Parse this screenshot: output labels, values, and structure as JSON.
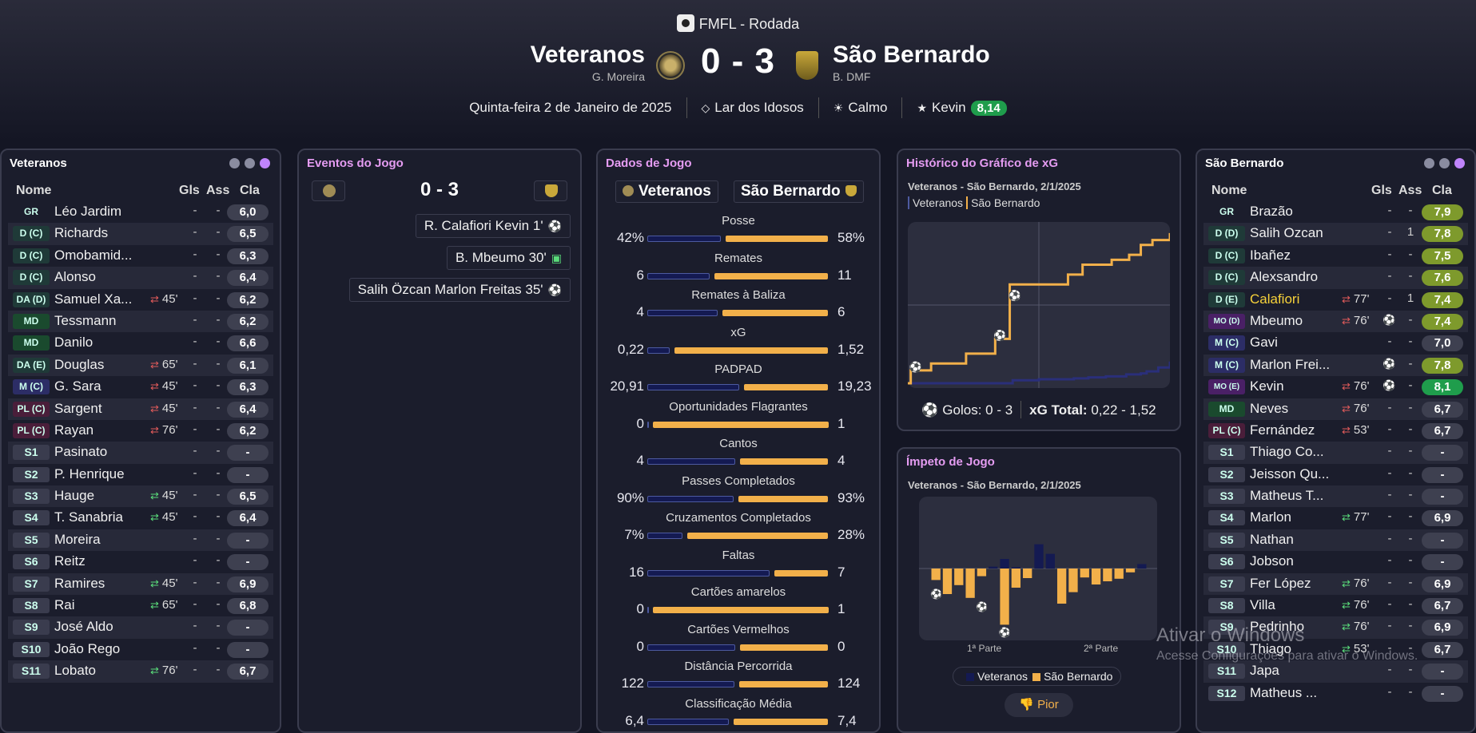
{
  "header": {
    "competition": "FMFL - Rodada",
    "home_team": "Veteranos",
    "home_coach": "G. Moreira",
    "away_team": "São Bernardo",
    "away_coach": "B. DMF",
    "score": "0 - 3",
    "date": "Quinta-feira 2 de Janeiro de 2025",
    "stadium": "Lar dos Idosos",
    "weather": "Calmo",
    "player_of_match": "Kevin",
    "player_of_match_rating": "8,14"
  },
  "home_panel": {
    "title": "Veteranos",
    "col_name": "Nome",
    "col_gls": "Gls",
    "col_ass": "Ass",
    "col_cla": "Cla",
    "players": [
      {
        "pos": "GR",
        "name": "Léo Jardim",
        "sub": "",
        "gls": "-",
        "ass": "-",
        "cla": "6,0"
      },
      {
        "pos": "D (C)",
        "name": "Richards",
        "sub": "",
        "gls": "-",
        "ass": "-",
        "cla": "6,5"
      },
      {
        "pos": "D (C)",
        "name": "Omobamid...",
        "sub": "",
        "gls": "-",
        "ass": "-",
        "cla": "6,3"
      },
      {
        "pos": "D (C)",
        "name": "Alonso",
        "sub": "",
        "gls": "-",
        "ass": "-",
        "cla": "6,4"
      },
      {
        "pos": "DA (D)",
        "name": "Samuel Xa...",
        "sub": "45'",
        "gls": "-",
        "ass": "-",
        "cla": "6,2"
      },
      {
        "pos": "MD",
        "name": "Tessmann",
        "sub": "",
        "gls": "-",
        "ass": "-",
        "cla": "6,2"
      },
      {
        "pos": "MD",
        "name": "Danilo",
        "sub": "",
        "gls": "-",
        "ass": "-",
        "cla": "6,6"
      },
      {
        "pos": "DA (E)",
        "name": "Douglas",
        "sub": "65'",
        "gls": "-",
        "ass": "-",
        "cla": "6,1"
      },
      {
        "pos": "M (C)",
        "name": "G. Sara",
        "sub": "45'",
        "gls": "-",
        "ass": "-",
        "cla": "6,3"
      },
      {
        "pos": "PL (C)",
        "name": "Sargent",
        "sub": "45'",
        "gls": "-",
        "ass": "-",
        "cla": "6,4"
      },
      {
        "pos": "PL (C)",
        "name": "Rayan",
        "sub": "76'",
        "gls": "-",
        "ass": "-",
        "cla": "6,2"
      },
      {
        "pos": "S1",
        "name": "Pasinato",
        "sub": "",
        "gls": "-",
        "ass": "-",
        "cla": "-"
      },
      {
        "pos": "S2",
        "name": "P. Henrique",
        "sub": "",
        "gls": "-",
        "ass": "-",
        "cla": "-"
      },
      {
        "pos": "S3",
        "name": "Hauge",
        "sub": "45'",
        "gls": "-",
        "ass": "-",
        "cla": "6,5"
      },
      {
        "pos": "S4",
        "name": "T. Sanabria",
        "sub": "45'",
        "gls": "-",
        "ass": "-",
        "cla": "6,4"
      },
      {
        "pos": "S5",
        "name": "Moreira",
        "sub": "",
        "gls": "-",
        "ass": "-",
        "cla": "-"
      },
      {
        "pos": "S6",
        "name": "Reitz",
        "sub": "",
        "gls": "-",
        "ass": "-",
        "cla": "-"
      },
      {
        "pos": "S7",
        "name": "Ramires",
        "sub": "45'",
        "gls": "-",
        "ass": "-",
        "cla": "6,9"
      },
      {
        "pos": "S8",
        "name": "Rai",
        "sub": "65'",
        "gls": "-",
        "ass": "-",
        "cla": "6,8"
      },
      {
        "pos": "S9",
        "name": "José Aldo",
        "sub": "",
        "gls": "-",
        "ass": "-",
        "cla": "-"
      },
      {
        "pos": "S10",
        "name": "João Rego",
        "sub": "",
        "gls": "-",
        "ass": "-",
        "cla": "-"
      },
      {
        "pos": "S11",
        "name": "Lobato",
        "sub": "76'",
        "gls": "-",
        "ass": "-",
        "cla": "6,7"
      }
    ]
  },
  "away_panel": {
    "title": "São Bernardo",
    "col_name": "Nome",
    "col_gls": "Gls",
    "col_ass": "Ass",
    "col_cla": "Cla",
    "players": [
      {
        "pos": "GR",
        "name": "Brazão",
        "sub": "",
        "gls": "-",
        "ass": "-",
        "cla": "7,9"
      },
      {
        "pos": "D (D)",
        "name": "Salih Ozcan",
        "sub": "",
        "gls": "-",
        "ass": "1",
        "cla": "7,8"
      },
      {
        "pos": "D (C)",
        "name": "Ibañez",
        "sub": "",
        "gls": "-",
        "ass": "-",
        "cla": "7,5"
      },
      {
        "pos": "D (C)",
        "name": "Alexsandro",
        "sub": "",
        "gls": "-",
        "ass": "-",
        "cla": "7,6"
      },
      {
        "pos": "D (E)",
        "name": "Calafiori",
        "sub": "77'",
        "gls": "-",
        "ass": "1",
        "cla": "7,4"
      },
      {
        "pos": "MO (D)",
        "name": "Mbeumo",
        "sub": "76'",
        "gls": "goal",
        "ass": "-",
        "cla": "7,4"
      },
      {
        "pos": "M (C)",
        "name": "Gavi",
        "sub": "",
        "gls": "-",
        "ass": "-",
        "cla": "7,0"
      },
      {
        "pos": "M (C)",
        "name": "Marlon Frei...",
        "sub": "",
        "gls": "goal",
        "ass": "-",
        "cla": "7,8"
      },
      {
        "pos": "MO (E)",
        "name": "Kevin",
        "sub": "76'",
        "gls": "goal",
        "ass": "-",
        "cla": "8,1"
      },
      {
        "pos": "MD",
        "name": "Neves",
        "sub": "76'",
        "gls": "-",
        "ass": "-",
        "cla": "6,7"
      },
      {
        "pos": "PL (C)",
        "name": "Fernández",
        "sub": "53'",
        "gls": "-",
        "ass": "-",
        "cla": "6,7"
      },
      {
        "pos": "S1",
        "name": "Thiago Co...",
        "sub": "",
        "gls": "-",
        "ass": "-",
        "cla": "-"
      },
      {
        "pos": "S2",
        "name": "Jeisson Qu...",
        "sub": "",
        "gls": "-",
        "ass": "-",
        "cla": "-"
      },
      {
        "pos": "S3",
        "name": "Matheus T...",
        "sub": "",
        "gls": "-",
        "ass": "-",
        "cla": "-"
      },
      {
        "pos": "S4",
        "name": "Marlon",
        "sub": "77'",
        "gls": "-",
        "ass": "-",
        "cla": "6,9"
      },
      {
        "pos": "S5",
        "name": "Nathan",
        "sub": "",
        "gls": "-",
        "ass": "-",
        "cla": "-"
      },
      {
        "pos": "S6",
        "name": "Jobson",
        "sub": "",
        "gls": "-",
        "ass": "-",
        "cla": "-"
      },
      {
        "pos": "S7",
        "name": "Fer López",
        "sub": "76'",
        "gls": "-",
        "ass": "-",
        "cla": "6,9"
      },
      {
        "pos": "S8",
        "name": "Villa",
        "sub": "76'",
        "gls": "-",
        "ass": "-",
        "cla": "6,7"
      },
      {
        "pos": "S9",
        "name": "Pedrinho",
        "sub": "76'",
        "gls": "-",
        "ass": "-",
        "cla": "6,9"
      },
      {
        "pos": "S10",
        "name": "Thiago",
        "sub": "53'",
        "gls": "-",
        "ass": "-",
        "cla": "6,7"
      },
      {
        "pos": "S11",
        "name": "Japa",
        "sub": "",
        "gls": "-",
        "ass": "-",
        "cla": "-"
      },
      {
        "pos": "S12",
        "name": "Matheus ...",
        "sub": "",
        "gls": "-",
        "ass": "-",
        "cla": "-"
      }
    ]
  },
  "events": {
    "title": "Eventos do Jogo",
    "score": "0 - 3",
    "items": [
      {
        "text": "R. Calafiori Kevin 1'",
        "icon": "ball-icon"
      },
      {
        "text": "B. Mbeumo 30'",
        "icon": "card-icon"
      },
      {
        "text": "Salih Özcan Marlon Freitas 35'",
        "icon": "ball-icon"
      }
    ]
  },
  "match_stats": {
    "title": "Dados de Jogo",
    "home": "Veteranos",
    "away": "São Bernardo",
    "rows": [
      {
        "label": "Posse",
        "home": "42%",
        "away": "58%",
        "hv": 42,
        "av": 58
      },
      {
        "label": "Remates",
        "home": "6",
        "away": "11",
        "hv": 6,
        "av": 11
      },
      {
        "label": "Remates à Baliza",
        "home": "4",
        "away": "6",
        "hv": 4,
        "av": 6
      },
      {
        "label": "xG",
        "home": "0,22",
        "away": "1,52",
        "hv": 0.22,
        "av": 1.52
      },
      {
        "label": "PADPAD",
        "home": "20,91",
        "away": "19,23",
        "hv": 20.91,
        "av": 19.23
      },
      {
        "label": "Oportunidades Flagrantes",
        "home": "0",
        "away": "1",
        "hv": 0,
        "av": 1
      },
      {
        "label": "Cantos",
        "home": "4",
        "away": "4",
        "hv": 4,
        "av": 4
      },
      {
        "label": "Passes Completados",
        "home": "90%",
        "away": "93%",
        "hv": 90,
        "av": 93
      },
      {
        "label": "Cruzamentos Completados",
        "home": "7%",
        "away": "28%",
        "hv": 7,
        "av": 28
      },
      {
        "label": "Faltas",
        "home": "16",
        "away": "7",
        "hv": 16,
        "av": 7
      },
      {
        "label": "Cartões amarelos",
        "home": "0",
        "away": "1",
        "hv": 0,
        "av": 1
      },
      {
        "label": "Cartões Vermelhos",
        "home": "0",
        "away": "0",
        "hv": 0,
        "av": 0
      },
      {
        "label": "Distância Percorrida",
        "home": "122",
        "away": "124",
        "hv": 122,
        "av": 124
      },
      {
        "label": "Classificação Média",
        "home": "6,4",
        "away": "7,4",
        "hv": 6.4,
        "av": 7.4
      }
    ]
  },
  "xg_panel": {
    "title": "Histórico do Gráfico de xG",
    "subtitle": "Veteranos - São Bernardo, 2/1/2025",
    "legend_home": "Veteranos",
    "legend_away": "São Bernardo",
    "goals_label": "Golos: 0 - 3",
    "xg_total_label": "xG Total:",
    "xg_total_value": "0,22 - 1,52"
  },
  "momentum_panel": {
    "title": "Ímpeto de Jogo",
    "subtitle": "Veteranos - São Bernardo, 2/1/2025",
    "first_half": "1ª Parte",
    "second_half": "2ª Parte",
    "legend_home": "Veteranos",
    "legend_away": "São Bernardo",
    "worst_button": "Pior"
  },
  "chart_data": [
    {
      "type": "line",
      "series": [
        {
          "name": "Veteranos",
          "x": [
            0,
            36,
            45,
            52,
            57,
            62,
            68,
            75,
            80,
            82,
            86,
            90
          ],
          "y": [
            0,
            0.03,
            0.04,
            0.04,
            0.05,
            0.06,
            0.07,
            0.09,
            0.1,
            0.12,
            0.16,
            0.22
          ]
        },
        {
          "name": "São Bernardo",
          "x": [
            0,
            1,
            8,
            20,
            30,
            35,
            50,
            55,
            60,
            66,
            70,
            76,
            80,
            84,
            90
          ],
          "y": [
            0,
            0.13,
            0.2,
            0.3,
            0.45,
            1.0,
            1.0,
            1.1,
            1.2,
            1.2,
            1.25,
            1.3,
            1.4,
            1.45,
            1.52
          ]
        }
      ],
      "xlim": [
        0,
        90
      ],
      "ylim": [
        0,
        1.6
      ]
    },
    {
      "type": "bar",
      "series": [
        {
          "name": "Veteranos",
          "values": [
            0,
            0,
            0,
            0,
            0,
            0.03,
            0.15,
            0.02,
            0,
            0.38,
            0.23,
            0,
            0,
            0,
            0,
            0,
            0,
            0,
            0.07
          ]
        },
        {
          "name": "São Bernardo",
          "values": [
            0.18,
            0.4,
            0.26,
            0.46,
            0.12,
            0,
            0.88,
            0.3,
            0.15,
            0,
            0,
            0.55,
            0.37,
            0.14,
            0.25,
            0.2,
            0.16,
            0.06,
            0
          ]
        }
      ]
    }
  ]
}
